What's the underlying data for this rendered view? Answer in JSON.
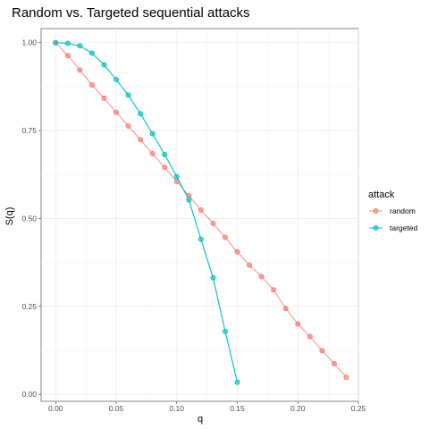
{
  "chart_data": {
    "type": "line",
    "title": "Random vs. Targeted sequential attacks",
    "xlabel": "q",
    "ylabel": "S(q)",
    "xlim": [
      -0.012,
      0.25
    ],
    "ylim": [
      -0.02,
      1.04
    ],
    "x_ticks": [
      0.0,
      0.05,
      0.1,
      0.15,
      0.2,
      0.25
    ],
    "x_tick_labels": [
      "0.00",
      "0.05",
      "0.10",
      "0.15",
      "0.20",
      "0.25"
    ],
    "y_ticks": [
      0.0,
      0.25,
      0.5,
      0.75,
      1.0
    ],
    "y_tick_labels": [
      "0.00",
      "0.25",
      "0.50",
      "0.75",
      "1.00"
    ],
    "grid": true,
    "legend": {
      "title": "attack",
      "position": "right"
    },
    "series": [
      {
        "name": "random",
        "color": "#F8766D",
        "x": [
          0.0,
          0.01,
          0.02,
          0.03,
          0.04,
          0.05,
          0.06,
          0.07,
          0.08,
          0.09,
          0.1,
          0.11,
          0.12,
          0.13,
          0.14,
          0.15,
          0.16,
          0.17,
          0.18,
          0.19,
          0.2,
          0.21,
          0.22,
          0.23,
          0.24
        ],
        "y": [
          1.0,
          0.963,
          0.922,
          0.88,
          0.842,
          0.802,
          0.763,
          0.724,
          0.684,
          0.645,
          0.605,
          0.565,
          0.524,
          0.486,
          0.446,
          0.405,
          0.367,
          0.335,
          0.297,
          0.244,
          0.2,
          0.164,
          0.124,
          0.087,
          0.048
        ]
      },
      {
        "name": "targeted",
        "color": "#00BFC4",
        "x": [
          0.0,
          0.01,
          0.02,
          0.03,
          0.04,
          0.05,
          0.06,
          0.07,
          0.08,
          0.09,
          0.1,
          0.11,
          0.12,
          0.13,
          0.14,
          0.15
        ],
        "y": [
          1.0,
          0.998,
          0.991,
          0.97,
          0.937,
          0.895,
          0.851,
          0.798,
          0.741,
          0.682,
          0.619,
          0.553,
          0.441,
          0.331,
          0.179,
          0.034
        ]
      }
    ]
  }
}
